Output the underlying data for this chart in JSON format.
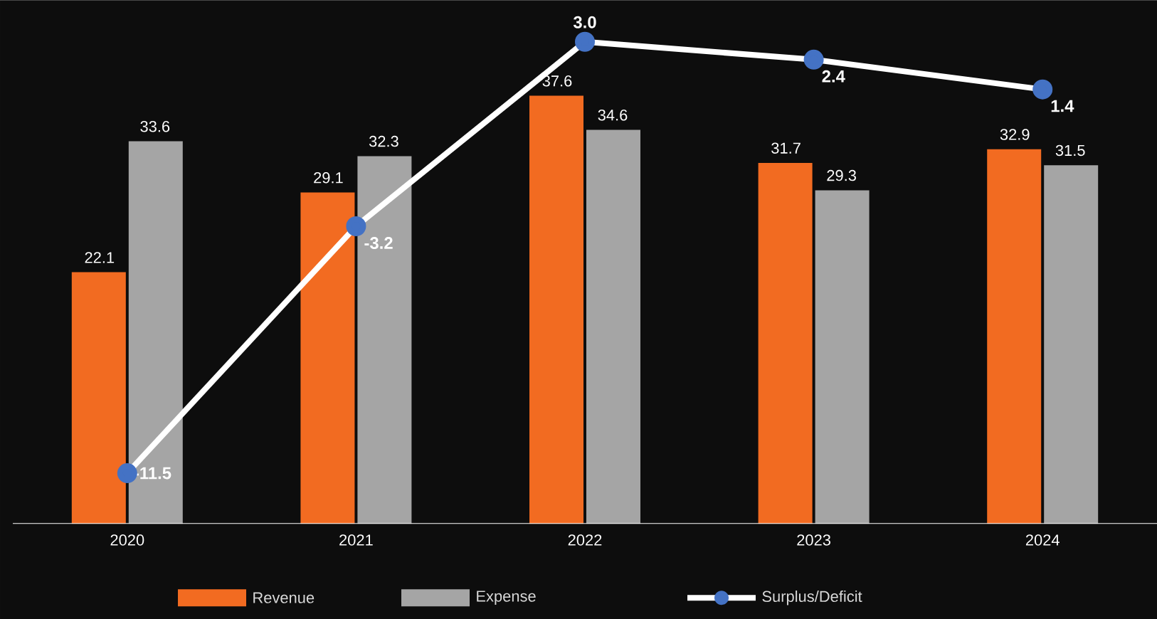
{
  "chart_data": {
    "type": "bar",
    "categories": [
      "2020",
      "2021",
      "2022",
      "2023",
      "2024"
    ],
    "series": [
      {
        "name": "Revenue",
        "color": "#f26b21",
        "values": [
          22.1,
          29.1,
          37.6,
          31.7,
          32.9
        ],
        "value_labels": [
          "22.1",
          "29.1",
          "37.6",
          "31.7",
          "32.9"
        ]
      },
      {
        "name": "Expense",
        "color": "#a5a5a5",
        "values": [
          33.6,
          32.3,
          34.6,
          29.3,
          31.5
        ],
        "value_labels": [
          "33.6",
          "32.3",
          "34.6",
          "29.3",
          "31.5"
        ]
      },
      {
        "name": "Surplus/Deficit",
        "type": "line",
        "axis": "y2",
        "color": "#ffffff",
        "marker": "circle",
        "values": [
          -11.5,
          -3.2,
          3.0,
          2.4,
          1.4
        ],
        "value_labels": [
          "-11.5",
          "-3.2",
          "3.0",
          "2.4",
          "1.4"
        ]
      }
    ],
    "ylim": [
      0,
      46
    ],
    "y2lim": [
      -13.2,
      4.4
    ],
    "tick_labels": "x",
    "legend": "bottom",
    "grid": false
  }
}
